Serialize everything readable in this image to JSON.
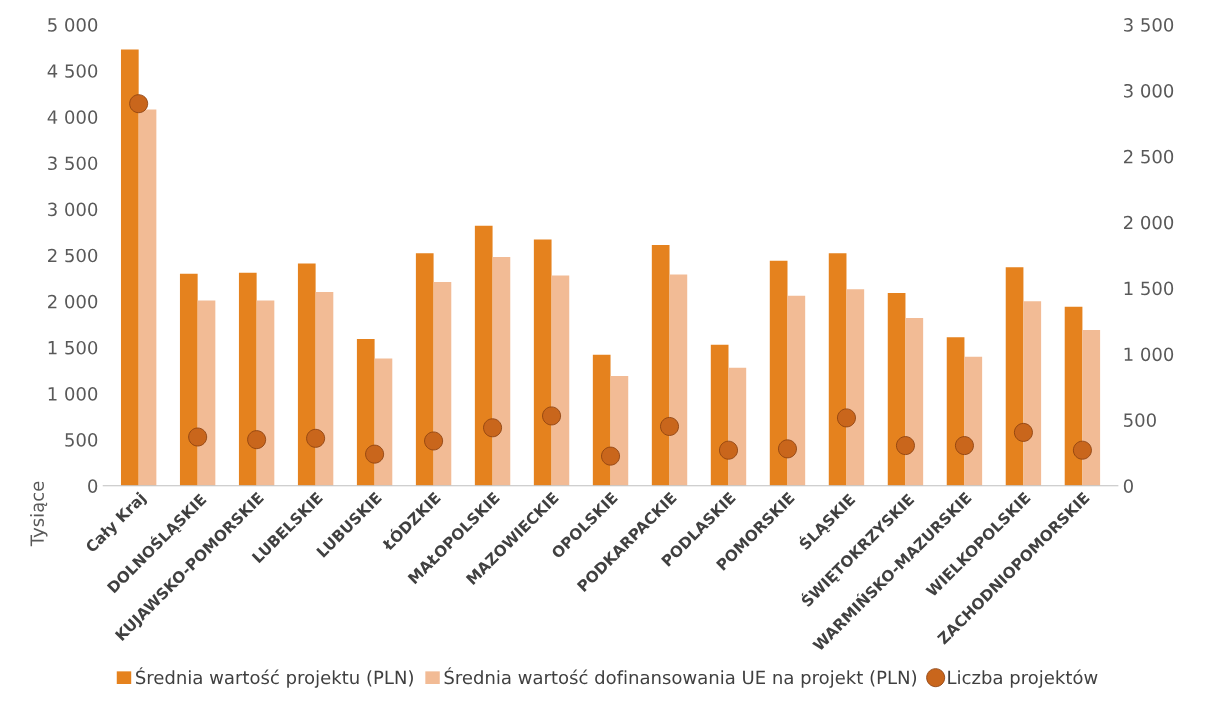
{
  "chart_data": {
    "type": "bar",
    "categories": [
      "Cały Kraj",
      "DOLNOŚLĄSKIE",
      "KUJAWSKO-POMORSKIE",
      "LUBELSKIE",
      "LUBUSKIE",
      "ŁÓDZKIE",
      "MAŁOPOLSKIE",
      "MAZOWIECKIE",
      "OPOLSKIE",
      "PODKARPACKIE",
      "PODLASKIE",
      "POMORSKIE",
      "ŚLĄSKIE",
      "ŚWIĘTOKRZYSKIE",
      "WARMIŃSKO-MAZURSKIE",
      "WIELKOPOLSKIE",
      "ZACHODNIOPOMORSKIE"
    ],
    "series": [
      {
        "name": "Średnia wartość projektu (PLN)",
        "color": "#e5821e",
        "values": [
          4730,
          2300,
          2310,
          2410,
          1590,
          2520,
          2820,
          2670,
          1420,
          2610,
          1530,
          2440,
          2520,
          2090,
          1610,
          2370,
          1940
        ]
      },
      {
        "name": "Średnia wartość dofinansowania UE na projekt (PLN)",
        "color": "#f2bb95",
        "values": [
          4080,
          2010,
          2010,
          2100,
          1380,
          2210,
          2480,
          2280,
          1190,
          2290,
          1280,
          2060,
          2130,
          1820,
          1400,
          2000,
          1690
        ]
      },
      {
        "name": "Liczba projektów",
        "type": "scatter",
        "axis": "y2",
        "color": "#c9661c",
        "values": [
          2900,
          370,
          350,
          360,
          240,
          340,
          440,
          530,
          225,
          450,
          270,
          280,
          515,
          305,
          305,
          405,
          270
        ]
      }
    ],
    "ylabel": "Tysiące",
    "ylim": [
      0,
      5000
    ],
    "yticks": [
      {
        "value": 0,
        "label": "0"
      },
      {
        "value": 500,
        "label": "500"
      },
      {
        "value": 1000,
        "label": "1 000"
      },
      {
        "value": 1500,
        "label": "1 500"
      },
      {
        "value": 2000,
        "label": "2 000"
      },
      {
        "value": 2500,
        "label": "2 500"
      },
      {
        "value": 3000,
        "label": "3 000"
      },
      {
        "value": 3500,
        "label": "3 500"
      },
      {
        "value": 4000,
        "label": "4 000"
      },
      {
        "value": 4500,
        "label": "4 500"
      },
      {
        "value": 5000,
        "label": "5 000"
      }
    ],
    "y2lim": [
      0,
      3500
    ],
    "y2ticks": [
      {
        "value": 0,
        "label": "0"
      },
      {
        "value": 500,
        "label": "500"
      },
      {
        "value": 1000,
        "label": "1 000"
      },
      {
        "value": 1500,
        "label": "1 500"
      },
      {
        "value": 2000,
        "label": "2 000"
      },
      {
        "value": 2500,
        "label": "2 500"
      },
      {
        "value": 3000,
        "label": "3 000"
      },
      {
        "value": 3500,
        "label": "3 500"
      }
    ],
    "grid": false,
    "legend": "bottom",
    "marker": "circle"
  }
}
